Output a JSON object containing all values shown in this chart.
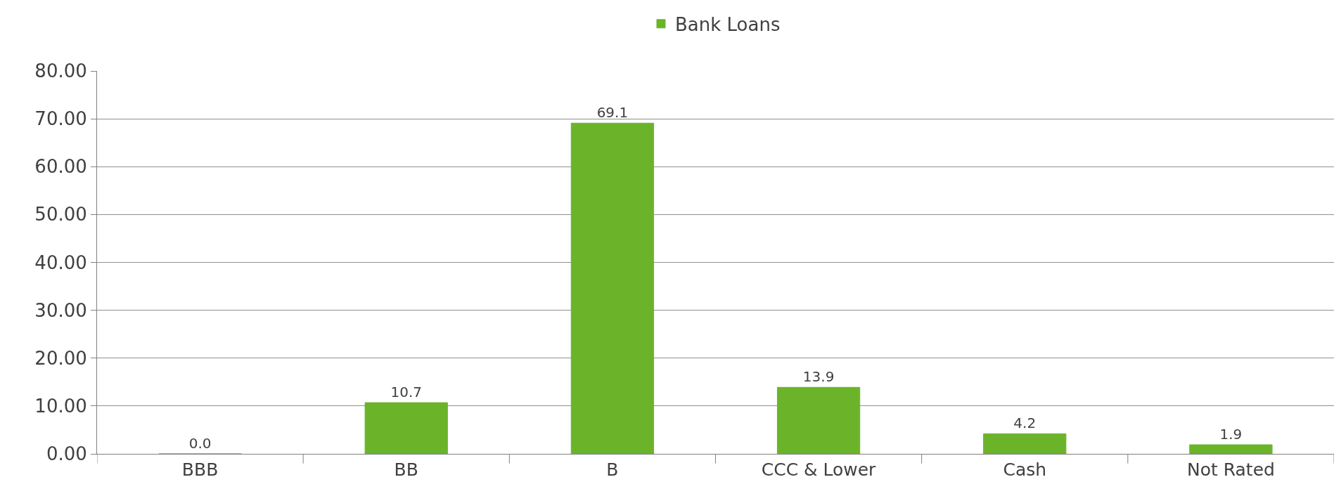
{
  "chart_data": {
    "type": "bar",
    "categories": [
      "BBB",
      "BB",
      "B",
      "CCC & Lower",
      "Cash",
      "Not Rated"
    ],
    "series": [
      {
        "name": "Bank Loans",
        "color": "#6bb42a",
        "values": [
          0.0,
          10.7,
          69.1,
          13.9,
          4.2,
          1.9
        ],
        "value_labels": [
          "0.0",
          "10.7",
          "69.1",
          "13.9",
          "4.2",
          "1.9"
        ]
      }
    ],
    "ylim": [
      0,
      80
    ],
    "yticks": [
      {
        "value": 0,
        "label": "0.00"
      },
      {
        "value": 10,
        "label": "10.00"
      },
      {
        "value": 20,
        "label": "20.00"
      },
      {
        "value": 30,
        "label": "30.00"
      },
      {
        "value": 40,
        "label": "40.00"
      },
      {
        "value": 50,
        "label": "50.00"
      },
      {
        "value": 60,
        "label": "60.00"
      },
      {
        "value": 70,
        "label": "70.00"
      },
      {
        "value": 80,
        "label": "80.00"
      }
    ],
    "grid": "y",
    "legend": "top"
  }
}
